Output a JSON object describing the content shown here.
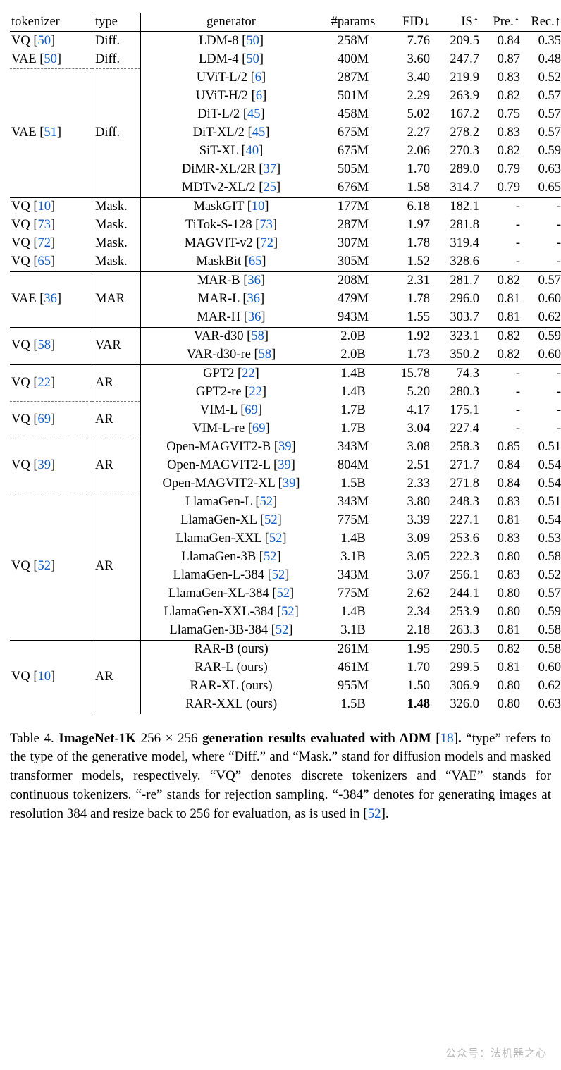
{
  "columns": {
    "tokenizer": "tokenizer",
    "type": "type",
    "generator": "generator",
    "params": "#params",
    "fid": "FID↓",
    "is": "IS↑",
    "pre": "Pre.↑",
    "rec": "Rec.↑"
  },
  "sections": [
    {
      "groups": [
        {
          "tokenizer": {
            "text": "VQ",
            "ref": "50"
          },
          "type": "Diff.",
          "rows": [
            {
              "gen": {
                "text": "LDM-8",
                "ref": "50"
              },
              "params": "258M",
              "fid": "7.76",
              "is": "209.5",
              "pre": "0.84",
              "rec": "0.35"
            }
          ]
        },
        {
          "tokenizer": {
            "text": "VAE",
            "ref": "50"
          },
          "type": "Diff.",
          "rows": [
            {
              "gen": {
                "text": "LDM-4",
                "ref": "50"
              },
              "params": "400M",
              "fid": "3.60",
              "is": "247.7",
              "pre": "0.87",
              "rec": "0.48"
            }
          ]
        },
        {
          "dashed": true,
          "tokenizer": {
            "text": "VAE",
            "ref": "51"
          },
          "type": "Diff.",
          "rows": [
            {
              "gen": {
                "text": "UViT-L/2",
                "ref": "6"
              },
              "params": "287M",
              "fid": "3.40",
              "is": "219.9",
              "pre": "0.83",
              "rec": "0.52"
            },
            {
              "gen": {
                "text": "UViT-H/2",
                "ref": "6"
              },
              "params": "501M",
              "fid": "2.29",
              "is": "263.9",
              "pre": "0.82",
              "rec": "0.57"
            },
            {
              "gen": {
                "text": "DiT-L/2",
                "ref": "45"
              },
              "params": "458M",
              "fid": "5.02",
              "is": "167.2",
              "pre": "0.75",
              "rec": "0.57"
            },
            {
              "gen": {
                "text": "DiT-XL/2",
                "ref": "45"
              },
              "params": "675M",
              "fid": "2.27",
              "is": "278.2",
              "pre": "0.83",
              "rec": "0.57"
            },
            {
              "gen": {
                "text": "SiT-XL",
                "ref": "40"
              },
              "params": "675M",
              "fid": "2.06",
              "is": "270.3",
              "pre": "0.82",
              "rec": "0.59"
            },
            {
              "gen": {
                "text": "DiMR-XL/2R",
                "ref": "37"
              },
              "params": "505M",
              "fid": "1.70",
              "is": "289.0",
              "pre": "0.79",
              "rec": "0.63"
            },
            {
              "gen": {
                "text": "MDTv2-XL/2",
                "ref": "25"
              },
              "params": "676M",
              "fid": "1.58",
              "is": "314.7",
              "pre": "0.79",
              "rec": "0.65"
            }
          ]
        }
      ]
    },
    {
      "groups": [
        {
          "tokenizer": {
            "text": "VQ",
            "ref": "10"
          },
          "type": "Mask.",
          "rows": [
            {
              "gen": {
                "text": "MaskGIT",
                "ref": "10"
              },
              "params": "177M",
              "fid": "6.18",
              "is": "182.1",
              "pre": "-",
              "rec": "-"
            }
          ]
        },
        {
          "tokenizer": {
            "text": "VQ",
            "ref": "73"
          },
          "type": "Mask.",
          "rows": [
            {
              "gen": {
                "text": "TiTok-S-128",
                "ref": "73"
              },
              "params": "287M",
              "fid": "1.97",
              "is": "281.8",
              "pre": "-",
              "rec": "-"
            }
          ]
        },
        {
          "tokenizer": {
            "text": "VQ",
            "ref": "72"
          },
          "type": "Mask.",
          "rows": [
            {
              "gen": {
                "text": "MAGVIT-v2",
                "ref": "72"
              },
              "params": "307M",
              "fid": "1.78",
              "is": "319.4",
              "pre": "-",
              "rec": "-"
            }
          ]
        },
        {
          "tokenizer": {
            "text": "VQ",
            "ref": "65"
          },
          "type": "Mask.",
          "rows": [
            {
              "gen": {
                "text": "MaskBit",
                "ref": "65"
              },
              "params": "305M",
              "fid": "1.52",
              "is": "328.6",
              "pre": "-",
              "rec": "-"
            }
          ]
        }
      ]
    },
    {
      "groups": [
        {
          "tokenizer": {
            "text": "VAE",
            "ref": "36"
          },
          "type": "MAR",
          "rows": [
            {
              "gen": {
                "text": "MAR-B",
                "ref": "36"
              },
              "params": "208M",
              "fid": "2.31",
              "is": "281.7",
              "pre": "0.82",
              "rec": "0.57"
            },
            {
              "gen": {
                "text": "MAR-L",
                "ref": "36"
              },
              "params": "479M",
              "fid": "1.78",
              "is": "296.0",
              "pre": "0.81",
              "rec": "0.60"
            },
            {
              "gen": {
                "text": "MAR-H",
                "ref": "36"
              },
              "params": "943M",
              "fid": "1.55",
              "is": "303.7",
              "pre": "0.81",
              "rec": "0.62"
            }
          ]
        }
      ]
    },
    {
      "groups": [
        {
          "tokenizer": {
            "text": "VQ",
            "ref": "58"
          },
          "type": "VAR",
          "rows": [
            {
              "gen": {
                "text": "VAR-d30",
                "ref": "58"
              },
              "params": "2.0B",
              "fid": "1.92",
              "is": "323.1",
              "pre": "0.82",
              "rec": "0.59"
            },
            {
              "gen": {
                "text": "VAR-d30-re",
                "ref": "58"
              },
              "params": "2.0B",
              "fid": "1.73",
              "is": "350.2",
              "pre": "0.82",
              "rec": "0.60"
            }
          ]
        }
      ]
    },
    {
      "groups": [
        {
          "tokenizer": {
            "text": "VQ",
            "ref": "22"
          },
          "type": "AR",
          "rows": [
            {
              "gen": {
                "text": "GPT2",
                "ref": "22"
              },
              "params": "1.4B",
              "fid": "15.78",
              "is": "74.3",
              "pre": "-",
              "rec": "-"
            },
            {
              "gen": {
                "text": "GPT2-re",
                "ref": "22"
              },
              "params": "1.4B",
              "fid": "5.20",
              "is": "280.3",
              "pre": "-",
              "rec": "-"
            }
          ]
        },
        {
          "dashed": true,
          "tokenizer": {
            "text": "VQ",
            "ref": "69"
          },
          "type": "AR",
          "rows": [
            {
              "gen": {
                "text": "VIM-L",
                "ref": "69"
              },
              "params": "1.7B",
              "fid": "4.17",
              "is": "175.1",
              "pre": "-",
              "rec": "-"
            },
            {
              "gen": {
                "text": "VIM-L-re",
                "ref": "69"
              },
              "params": "1.7B",
              "fid": "3.04",
              "is": "227.4",
              "pre": "-",
              "rec": "-"
            }
          ]
        },
        {
          "dashed": true,
          "tokenizer": {
            "text": "VQ",
            "ref": "39"
          },
          "type": "AR",
          "rows": [
            {
              "gen": {
                "text": "Open-MAGVIT2-B",
                "ref": "39"
              },
              "params": "343M",
              "fid": "3.08",
              "is": "258.3",
              "pre": "0.85",
              "rec": "0.51"
            },
            {
              "gen": {
                "text": "Open-MAGVIT2-L",
                "ref": "39"
              },
              "params": "804M",
              "fid": "2.51",
              "is": "271.7",
              "pre": "0.84",
              "rec": "0.54"
            },
            {
              "gen": {
                "text": "Open-MAGVIT2-XL",
                "ref": "39"
              },
              "params": "1.5B",
              "fid": "2.33",
              "is": "271.8",
              "pre": "0.84",
              "rec": "0.54"
            }
          ]
        },
        {
          "dashed": true,
          "tokenizer": {
            "text": "VQ",
            "ref": "52"
          },
          "type": "AR",
          "rows": [
            {
              "gen": {
                "text": "LlamaGen-L",
                "ref": "52"
              },
              "params": "343M",
              "fid": "3.80",
              "is": "248.3",
              "pre": "0.83",
              "rec": "0.51"
            },
            {
              "gen": {
                "text": "LlamaGen-XL",
                "ref": "52"
              },
              "params": "775M",
              "fid": "3.39",
              "is": "227.1",
              "pre": "0.81",
              "rec": "0.54"
            },
            {
              "gen": {
                "text": "LlamaGen-XXL",
                "ref": "52"
              },
              "params": "1.4B",
              "fid": "3.09",
              "is": "253.6",
              "pre": "0.83",
              "rec": "0.53"
            },
            {
              "gen": {
                "text": "LlamaGen-3B",
                "ref": "52"
              },
              "params": "3.1B",
              "fid": "3.05",
              "is": "222.3",
              "pre": "0.80",
              "rec": "0.58"
            },
            {
              "gen": {
                "text": "LlamaGen-L-384",
                "ref": "52"
              },
              "params": "343M",
              "fid": "3.07",
              "is": "256.1",
              "pre": "0.83",
              "rec": "0.52"
            },
            {
              "gen": {
                "text": "LlamaGen-XL-384",
                "ref": "52"
              },
              "params": "775M",
              "fid": "2.62",
              "is": "244.1",
              "pre": "0.80",
              "rec": "0.57"
            },
            {
              "gen": {
                "text": "LlamaGen-XXL-384",
                "ref": "52"
              },
              "params": "1.4B",
              "fid": "2.34",
              "is": "253.9",
              "pre": "0.80",
              "rec": "0.59"
            },
            {
              "gen": {
                "text": "LlamaGen-3B-384",
                "ref": "52"
              },
              "params": "3.1B",
              "fid": "2.18",
              "is": "263.3",
              "pre": "0.81",
              "rec": "0.58"
            }
          ]
        }
      ]
    },
    {
      "groups": [
        {
          "tokenizer": {
            "text": "VQ",
            "ref": "10"
          },
          "type": "AR",
          "rows": [
            {
              "gen": {
                "text": "RAR-B (ours)"
              },
              "params": "261M",
              "fid": "1.95",
              "is": "290.5",
              "pre": "0.82",
              "rec": "0.58"
            },
            {
              "gen": {
                "text": "RAR-L (ours)"
              },
              "params": "461M",
              "fid": "1.70",
              "is": "299.5",
              "pre": "0.81",
              "rec": "0.60"
            },
            {
              "gen": {
                "text": "RAR-XL (ours)"
              },
              "params": "955M",
              "fid": "1.50",
              "is": "306.9",
              "pre": "0.80",
              "rec": "0.62"
            },
            {
              "gen": {
                "text": "RAR-XXL (ours)"
              },
              "params": "1.5B",
              "fid": "1.48",
              "fid_bold": true,
              "is": "326.0",
              "pre": "0.80",
              "rec": "0.63"
            }
          ]
        }
      ]
    }
  ],
  "caption": {
    "label": "Table 4.",
    "title_html": "<b>ImageNet-1K</b> 256 × 256 <b>generation results evaluated with ADM</b> [<a class=\"ref\">18</a>]<b>.</b>",
    "body_html": "“type” refers to the type of the generative model, where “Diff.” and “Mask.” stand for diffusion models and masked transformer models, respectively. “VQ” denotes discrete tokenizers and “VAE” stands for continuous tokenizers. “-re” stands for rejection sampling. “-384” denotes for generating images at resolution 384 and resize back to 256 for evaluation, as is used in [<a class=\"ref\">52</a>]."
  },
  "watermark": "公众号：法机器之心"
}
